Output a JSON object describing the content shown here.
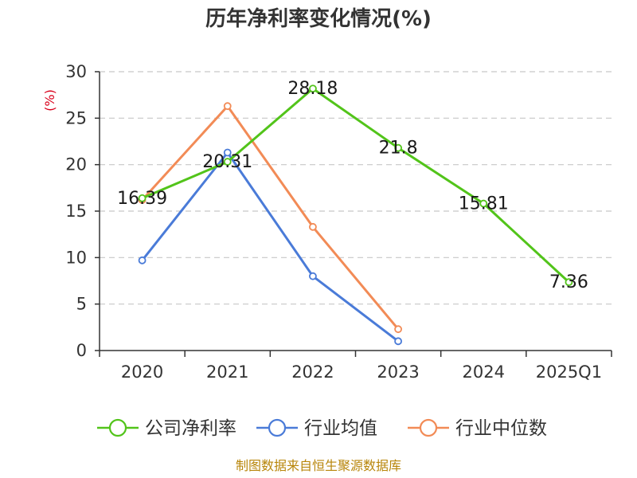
{
  "chart_data": {
    "type": "line",
    "title": "历年净利率变化情况(%)",
    "ylabel": "(%)",
    "categories": [
      "2020",
      "2021",
      "2022",
      "2023",
      "2024",
      "2025Q1"
    ],
    "ylim": [
      0,
      30
    ],
    "yticks": [
      0,
      5,
      10,
      15,
      20,
      25,
      30
    ],
    "grid": "horizontal-dashed",
    "legend_position": "bottom",
    "series": [
      {
        "name": "公司净利率",
        "color": "#52c41a",
        "values": [
          16.39,
          20.31,
          28.18,
          21.8,
          15.81,
          7.36
        ],
        "labels": [
          "16.39",
          "20.31",
          "28.18",
          "21.8",
          "15.81",
          "7.36"
        ]
      },
      {
        "name": "行业均值",
        "color": "#4a7bd8",
        "values": [
          9.7,
          21.3,
          8.0,
          1.0,
          null,
          null
        ]
      },
      {
        "name": "行业中位数",
        "color": "#f28b56",
        "values": [
          16.2,
          26.3,
          13.3,
          2.3,
          null,
          null
        ]
      }
    ]
  },
  "footer": {
    "source": "制图数据来自恒生聚源数据库"
  }
}
